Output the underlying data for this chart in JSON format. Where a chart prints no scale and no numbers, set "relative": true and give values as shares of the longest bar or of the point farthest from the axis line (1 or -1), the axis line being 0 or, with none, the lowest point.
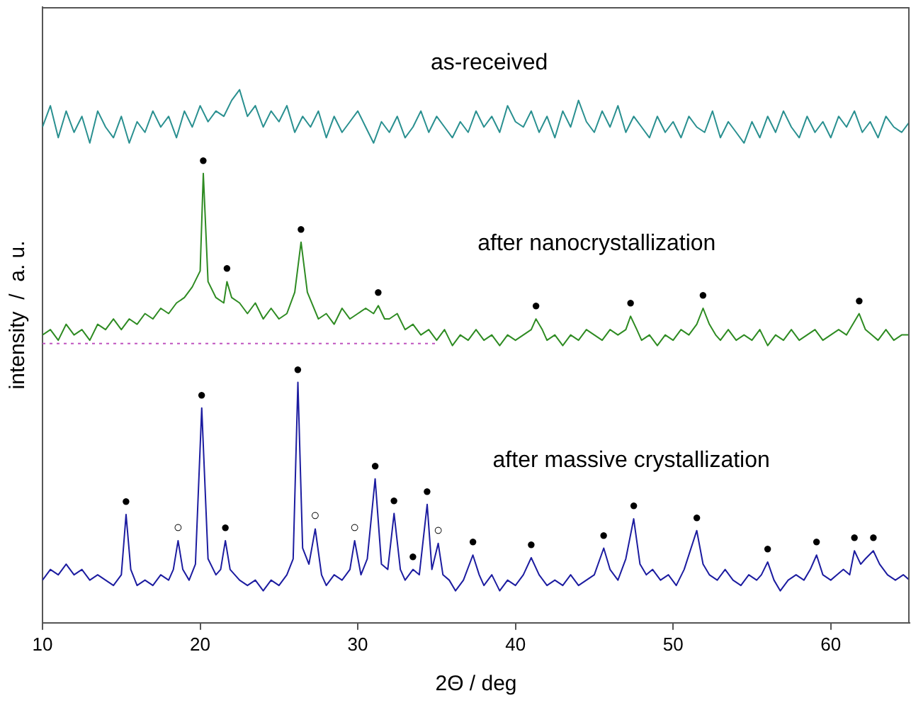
{
  "chart_data": {
    "type": "line",
    "relative": true,
    "xlabel": "2Θ / deg",
    "ylabel": "intensity  /  a. u.",
    "xlim": [
      10,
      65
    ],
    "xticks": [
      10,
      20,
      30,
      40,
      50,
      60
    ],
    "grid": false,
    "legend": false,
    "marker": "none",
    "line_style": "solid",
    "series": [
      {
        "name": "as-received",
        "color": "#2a9090",
        "x": [
          10,
          10.5,
          11,
          11.5,
          12,
          12.5,
          13,
          13.5,
          14,
          14.5,
          15,
          15.5,
          16,
          16.5,
          17,
          17.5,
          18,
          18.5,
          19,
          19.5,
          20,
          20.5,
          21,
          21.5,
          22,
          22.5,
          23,
          23.5,
          24,
          24.5,
          25,
          25.5,
          26,
          26.5,
          27,
          27.5,
          28,
          28.5,
          29,
          29.5,
          30,
          30.5,
          31,
          31.5,
          32,
          32.5,
          33,
          33.5,
          34,
          34.5,
          35,
          35.5,
          36,
          36.5,
          37,
          37.5,
          38,
          38.5,
          39,
          39.5,
          40,
          40.5,
          41,
          41.5,
          42,
          42.5,
          43,
          43.5,
          44,
          44.5,
          45,
          45.5,
          46,
          46.5,
          47,
          47.5,
          48,
          48.5,
          49,
          49.5,
          50,
          50.5,
          51,
          51.5,
          52,
          52.5,
          53,
          53.5,
          54,
          54.5,
          55,
          55.5,
          56,
          56.5,
          57,
          57.5,
          58,
          58.5,
          59,
          59.5,
          60,
          60.5,
          61,
          61.5,
          62,
          62.5,
          63,
          63.5,
          64,
          64.5,
          65
        ],
        "values": [
          0.93,
          0.97,
          0.91,
          0.96,
          0.92,
          0.95,
          0.9,
          0.96,
          0.93,
          0.91,
          0.95,
          0.9,
          0.94,
          0.92,
          0.96,
          0.93,
          0.95,
          0.91,
          0.96,
          0.93,
          0.97,
          0.94,
          0.96,
          0.95,
          0.98,
          1.0,
          0.95,
          0.97,
          0.93,
          0.96,
          0.94,
          0.97,
          0.92,
          0.95,
          0.93,
          0.96,
          0.91,
          0.95,
          0.92,
          0.94,
          0.96,
          0.93,
          0.9,
          0.94,
          0.92,
          0.95,
          0.91,
          0.93,
          0.96,
          0.92,
          0.95,
          0.93,
          0.91,
          0.94,
          0.92,
          0.96,
          0.93,
          0.95,
          0.92,
          0.97,
          0.94,
          0.93,
          0.96,
          0.92,
          0.95,
          0.91,
          0.96,
          0.93,
          0.98,
          0.94,
          0.92,
          0.96,
          0.93,
          0.97,
          0.92,
          0.95,
          0.93,
          0.91,
          0.95,
          0.92,
          0.94,
          0.91,
          0.95,
          0.93,
          0.92,
          0.96,
          0.91,
          0.94,
          0.92,
          0.9,
          0.94,
          0.91,
          0.95,
          0.92,
          0.96,
          0.93,
          0.91,
          0.95,
          0.92,
          0.94,
          0.91,
          0.95,
          0.93,
          0.96,
          0.92,
          0.94,
          0.91,
          0.95,
          0.93,
          0.92,
          0.94
        ]
      },
      {
        "name": "after nanocrystallization",
        "color": "#2e8b22",
        "x": [
          10,
          10.5,
          11,
          11.5,
          12,
          12.5,
          13,
          13.5,
          14,
          14.5,
          15,
          15.5,
          16,
          16.5,
          17,
          17.5,
          18,
          18.5,
          19,
          19.5,
          20,
          20.2,
          20.5,
          21,
          21.5,
          21.7,
          22,
          22.5,
          23,
          23.5,
          24,
          24.5,
          25,
          25.5,
          26,
          26.4,
          26.8,
          27.5,
          28,
          28.5,
          29,
          29.5,
          30,
          30.5,
          31,
          31.3,
          31.7,
          32,
          32.5,
          33,
          33.5,
          34,
          34.5,
          35,
          35.5,
          36,
          36.5,
          37,
          37.5,
          38,
          38.5,
          39,
          39.5,
          40,
          40.5,
          41,
          41.3,
          41.7,
          42,
          42.5,
          43,
          43.5,
          44,
          44.5,
          45,
          45.5,
          46,
          46.5,
          47,
          47.3,
          47.7,
          48,
          48.5,
          49,
          49.5,
          50,
          50.5,
          51,
          51.5,
          51.9,
          52.3,
          52.7,
          53,
          53.5,
          54,
          54.5,
          55,
          55.5,
          56,
          56.5,
          57,
          57.5,
          58,
          58.5,
          59,
          59.5,
          60,
          60.5,
          61,
          61.4,
          61.8,
          62.2,
          62.6,
          63,
          63.5,
          64,
          64.5,
          65
        ],
        "values": [
          0.54,
          0.55,
          0.53,
          0.56,
          0.54,
          0.55,
          0.53,
          0.56,
          0.55,
          0.57,
          0.55,
          0.57,
          0.56,
          0.58,
          0.57,
          0.59,
          0.58,
          0.6,
          0.61,
          0.63,
          0.66,
          0.843,
          0.64,
          0.61,
          0.6,
          0.64,
          0.61,
          0.6,
          0.58,
          0.6,
          0.57,
          0.59,
          0.57,
          0.58,
          0.62,
          0.714,
          0.62,
          0.57,
          0.58,
          0.56,
          0.59,
          0.57,
          0.58,
          0.59,
          0.58,
          0.595,
          0.57,
          0.57,
          0.58,
          0.55,
          0.56,
          0.54,
          0.55,
          0.53,
          0.55,
          0.52,
          0.54,
          0.53,
          0.55,
          0.53,
          0.54,
          0.52,
          0.54,
          0.53,
          0.54,
          0.55,
          0.57,
          0.55,
          0.53,
          0.54,
          0.52,
          0.54,
          0.53,
          0.55,
          0.54,
          0.53,
          0.55,
          0.54,
          0.55,
          0.575,
          0.55,
          0.53,
          0.54,
          0.52,
          0.54,
          0.53,
          0.55,
          0.54,
          0.56,
          0.59,
          0.56,
          0.54,
          0.53,
          0.55,
          0.53,
          0.54,
          0.53,
          0.55,
          0.52,
          0.54,
          0.53,
          0.55,
          0.53,
          0.54,
          0.55,
          0.53,
          0.54,
          0.55,
          0.54,
          0.56,
          0.58,
          0.55,
          0.54,
          0.53,
          0.55,
          0.53,
          0.54,
          0.54
        ]
      },
      {
        "name": "after massive crystallization",
        "color": "#1c1ca0",
        "x": [
          10,
          10.5,
          11,
          11.5,
          12,
          12.5,
          13,
          13.5,
          14,
          14.5,
          15,
          15.3,
          15.6,
          16,
          16.5,
          17,
          17.5,
          18,
          18.3,
          18.6,
          18.9,
          19.3,
          19.7,
          20.1,
          20.5,
          21,
          21.3,
          21.6,
          21.9,
          22.5,
          23,
          23.5,
          24,
          24.5,
          25,
          25.5,
          25.9,
          26.2,
          26.5,
          26.9,
          27.3,
          27.7,
          28,
          28.5,
          29,
          29.5,
          29.8,
          30.2,
          30.6,
          31.1,
          31.5,
          31.9,
          32.3,
          32.7,
          33,
          33.5,
          33.9,
          34.4,
          34.7,
          35.1,
          35.4,
          35.8,
          36.2,
          36.7,
          37.3,
          37.7,
          38,
          38.5,
          39,
          39.5,
          40,
          40.5,
          41,
          41.5,
          42,
          42.5,
          43,
          43.5,
          44,
          44.5,
          45,
          45.6,
          46,
          46.5,
          47,
          47.5,
          47.9,
          48.3,
          48.7,
          49.2,
          49.7,
          50.2,
          50.7,
          51.5,
          51.9,
          52.3,
          52.8,
          53.3,
          53.8,
          54.3,
          54.8,
          55.3,
          55.6,
          56,
          56.4,
          56.8,
          57.3,
          57.8,
          58.3,
          58.7,
          59.1,
          59.5,
          60,
          60.4,
          60.8,
          61.2,
          61.5,
          61.9,
          62.2,
          62.7,
          63.1,
          63.6,
          64.1,
          64.6,
          65
        ],
        "values": [
          0.08,
          0.1,
          0.09,
          0.11,
          0.09,
          0.1,
          0.08,
          0.09,
          0.08,
          0.07,
          0.09,
          0.203,
          0.1,
          0.07,
          0.08,
          0.07,
          0.09,
          0.08,
          0.1,
          0.154,
          0.1,
          0.08,
          0.11,
          0.403,
          0.12,
          0.09,
          0.1,
          0.154,
          0.1,
          0.08,
          0.07,
          0.08,
          0.06,
          0.08,
          0.07,
          0.09,
          0.12,
          0.451,
          0.14,
          0.11,
          0.176,
          0.09,
          0.07,
          0.09,
          0.08,
          0.1,
          0.154,
          0.09,
          0.12,
          0.27,
          0.11,
          0.1,
          0.205,
          0.1,
          0.08,
          0.1,
          0.09,
          0.222,
          0.1,
          0.149,
          0.09,
          0.08,
          0.06,
          0.08,
          0.127,
          0.09,
          0.07,
          0.09,
          0.06,
          0.08,
          0.07,
          0.09,
          0.122,
          0.09,
          0.07,
          0.08,
          0.07,
          0.09,
          0.07,
          0.08,
          0.09,
          0.14,
          0.1,
          0.08,
          0.12,
          0.195,
          0.11,
          0.09,
          0.1,
          0.08,
          0.09,
          0.07,
          0.1,
          0.173,
          0.11,
          0.09,
          0.08,
          0.1,
          0.08,
          0.07,
          0.09,
          0.08,
          0.09,
          0.114,
          0.08,
          0.06,
          0.08,
          0.09,
          0.08,
          0.1,
          0.127,
          0.09,
          0.08,
          0.09,
          0.1,
          0.09,
          0.135,
          0.11,
          0.12,
          0.135,
          0.11,
          0.09,
          0.08,
          0.09,
          0.08
        ]
      },
      {
        "color": "#c055c0",
        "line_style": "dotted",
        "x": [
          10,
          35
        ],
        "values": [
          0.524,
          0.524
        ]
      }
    ],
    "annotations": [
      {
        "text": "●",
        "x": 20.2,
        "y": 0.843
      },
      {
        "text": "●",
        "x": 21.7,
        "y": 0.64
      },
      {
        "text": "●",
        "x": 26.4,
        "y": 0.714
      },
      {
        "text": "●",
        "x": 31.3,
        "y": 0.595
      },
      {
        "text": "●",
        "x": 41.3,
        "y": 0.57
      },
      {
        "text": "●",
        "x": 47.3,
        "y": 0.575
      },
      {
        "text": "●",
        "x": 51.9,
        "y": 0.59
      },
      {
        "text": "●",
        "x": 61.8,
        "y": 0.58
      },
      {
        "text": "●",
        "x": 15.3,
        "y": 0.203
      },
      {
        "text": "○",
        "x": 18.6,
        "y": 0.154
      },
      {
        "text": "●",
        "x": 20.1,
        "y": 0.403
      },
      {
        "text": "●",
        "x": 21.6,
        "y": 0.154
      },
      {
        "text": "●",
        "x": 26.2,
        "y": 0.451
      },
      {
        "text": "○",
        "x": 27.3,
        "y": 0.176
      },
      {
        "text": "○",
        "x": 29.8,
        "y": 0.154
      },
      {
        "text": "●",
        "x": 31.1,
        "y": 0.27
      },
      {
        "text": "●",
        "x": 32.3,
        "y": 0.205
      },
      {
        "text": "●",
        "x": 33.5,
        "y": 0.1
      },
      {
        "text": "●",
        "x": 34.4,
        "y": 0.222
      },
      {
        "text": "○",
        "x": 35.1,
        "y": 0.149
      },
      {
        "text": "●",
        "x": 37.3,
        "y": 0.127
      },
      {
        "text": "●",
        "x": 41,
        "y": 0.122
      },
      {
        "text": "●",
        "x": 45.6,
        "y": 0.14
      },
      {
        "text": "●",
        "x": 47.5,
        "y": 0.195
      },
      {
        "text": "●",
        "x": 51.5,
        "y": 0.173
      },
      {
        "text": "●",
        "x": 56,
        "y": 0.114
      },
      {
        "text": "●",
        "x": 59.1,
        "y": 0.127
      },
      {
        "text": "●",
        "x": 61.5,
        "y": 0.135
      },
      {
        "text": "●",
        "x": 62.7,
        "y": 0.135
      }
    ]
  }
}
